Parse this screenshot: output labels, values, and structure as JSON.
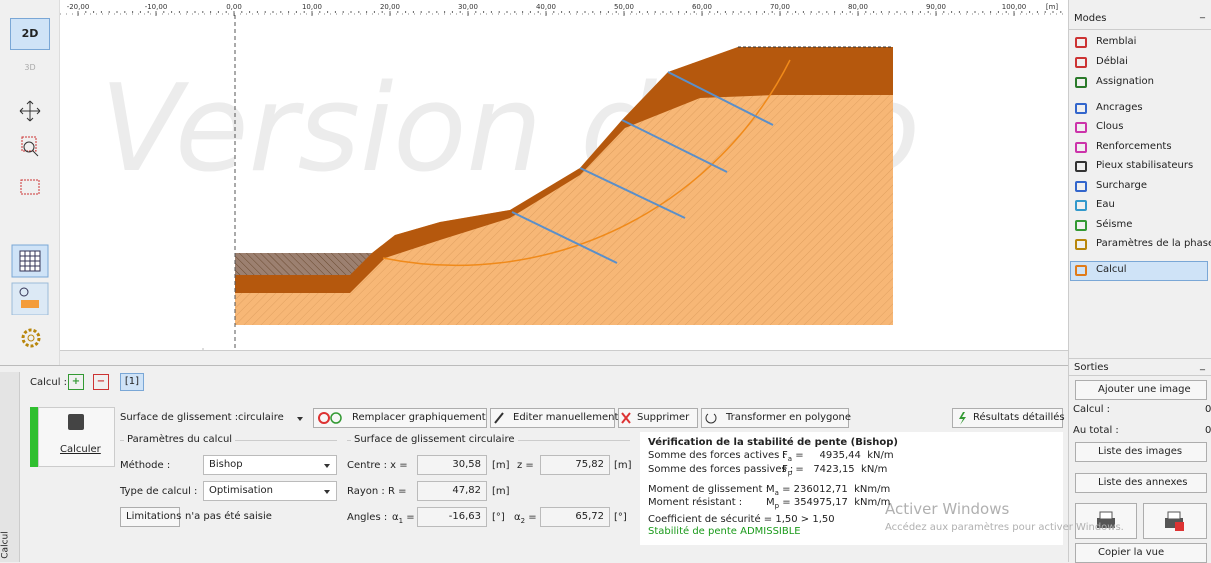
{
  "toolbar": {
    "view2d": "2D",
    "view3d": "3D"
  },
  "ruler": {
    "labels": [
      "-20,00",
      "-10,00",
      "0,00",
      "10,00",
      "20,00",
      "30,00",
      "40,00",
      "50,00",
      "60,00",
      "70,00",
      "80,00",
      "90,00",
      "100,00"
    ],
    "unit": "[m]"
  },
  "watermark": "Version démo",
  "modes": {
    "title": "Modes",
    "items": [
      "Remblai",
      "Déblai",
      "Assignation",
      "Ancrages",
      "Clous",
      "Renforcements",
      "Pieux stabilisateurs",
      "Surcharge",
      "Eau",
      "Séisme",
      "Paramètres de la phase",
      "Calcul"
    ]
  },
  "outputs": {
    "title": "Sorties",
    "add_image": "Ajouter une image",
    "calc_label": "Calcul :",
    "calc_count": "0",
    "total_label": "Au total :",
    "total_count": "0",
    "image_list": "Liste des images",
    "annex_list": "Liste des annexes",
    "copy_view": "Copier la vue"
  },
  "calc_panel": {
    "tab": "Calcul",
    "stage_label": "Calcul :",
    "stage": "[1]",
    "run": "Calculer",
    "surface_label": "Surface de glissement :",
    "surface": "circulaire",
    "actions": [
      "Remplacer graphiquement",
      "Editer manuellement",
      "Supprimer",
      "Transformer en polygone"
    ],
    "detailed": "Résultats détaillés",
    "params": {
      "title": "Paramètres du calcul",
      "method_label": "Méthode :",
      "method": "Bishop",
      "type_label": "Type de calcul :",
      "type": "Optimisation",
      "limits": "Limitations",
      "limits_status": "n'a pas été saisie"
    },
    "circle": {
      "title": "Surface de glissement circulaire",
      "centre_label": "Centre :  x =",
      "x": "30,58",
      "x_unit": "[m]",
      "z_label": "z =",
      "z": "75,82",
      "z_unit": "[m]",
      "radius_label": "Rayon :  R =",
      "r": "47,82",
      "r_unit": "[m]",
      "angles_label": "Angles :",
      "a1_sym": "α",
      "a1_sub": "1",
      "a1_eq": " =",
      "a1": "-16,63",
      "a1_unit": "[°]",
      "a2_sym": "α",
      "a2_sub": "2",
      "a2_eq": " =",
      "a2": "65,72",
      "a2_unit": "[°]"
    },
    "results": {
      "title": "Vérification de la stabilité de pente (Bishop)",
      "rows": [
        {
          "label": "Somme des forces actives :",
          "sym": "F",
          "sub": "a",
          "value": " =     4935,44  kN/m"
        },
        {
          "label": "Somme des forces passives :",
          "sym": "F",
          "sub": "p",
          "value": " =   7423,15  kN/m"
        },
        {
          "label": "Moment de glissement :",
          "sym": "M",
          "sub": "a",
          "value": " = 236012,71  kNm/m"
        },
        {
          "label": "Moment résistant :",
          "sym": "M",
          "sub": "p",
          "value": " = 354975,17  kNm/m"
        }
      ],
      "safety": "Coefficient de sécurité = 1,50 > 1,50",
      "verdict": "Stabilité de pente ADMISSIBLE"
    }
  },
  "windows": {
    "line1": "Activer Windows",
    "line2": "Accédez aux paramètres pour activer Windows."
  }
}
